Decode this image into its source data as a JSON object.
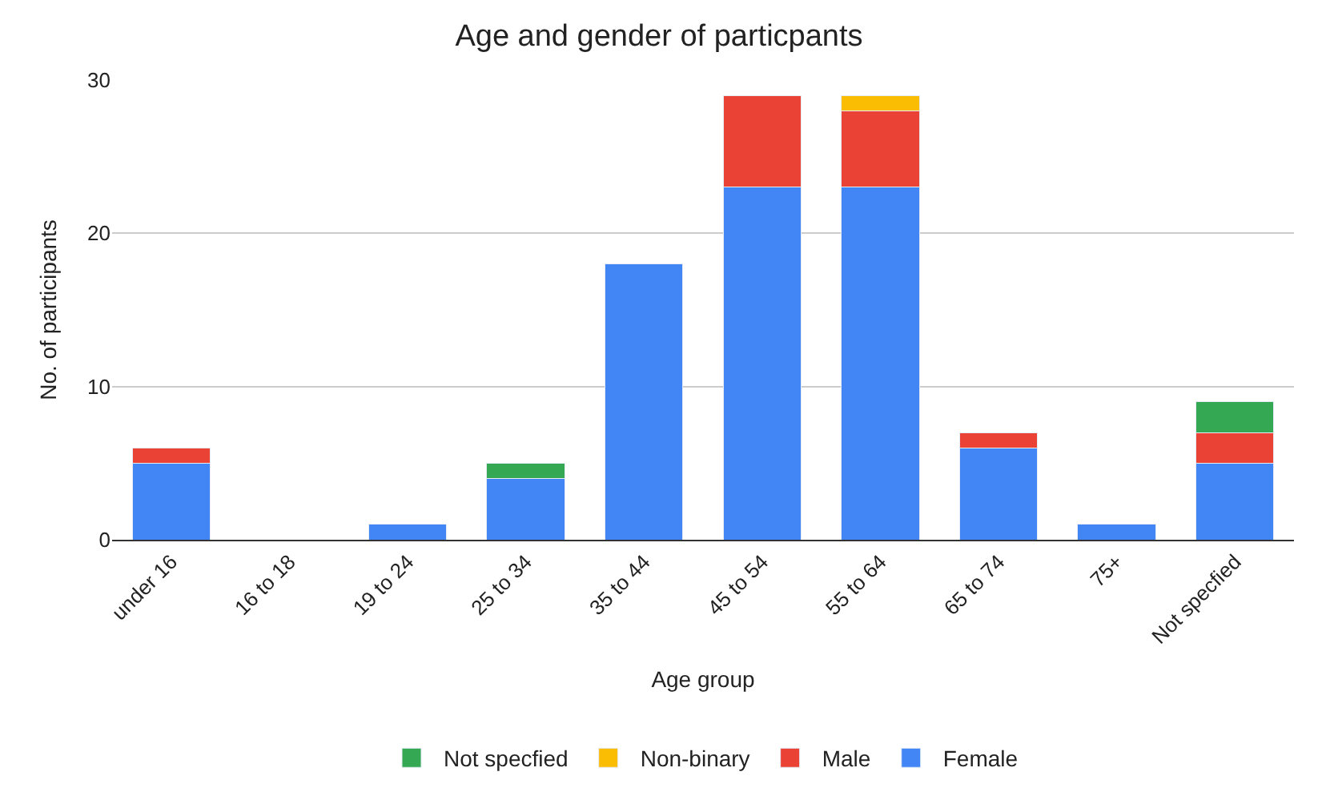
{
  "chart_data": {
    "type": "bar",
    "title": "Age and gender of particpants",
    "xlabel": "Age group",
    "ylabel": "No. of participants",
    "categories": [
      "under 16",
      "16 to 18",
      "19 to 24",
      "25 to 34",
      "35 to 44",
      "45 to 54",
      "55 to 64",
      "65 to 74",
      "75+",
      "Not specfied"
    ],
    "stacked": true,
    "ylim": [
      0,
      30
    ],
    "yticks": [
      0,
      10,
      20,
      30
    ],
    "grid": "y",
    "legend": "bottom",
    "series": [
      {
        "name": "Female",
        "color": "#4285f4",
        "values": [
          5,
          null,
          1,
          4,
          18,
          23,
          23,
          6,
          1,
          5
        ]
      },
      {
        "name": "Male",
        "color": "#ea4335",
        "values": [
          1,
          null,
          null,
          null,
          null,
          6,
          5,
          1,
          null,
          2
        ]
      },
      {
        "name": "Non-binary",
        "color": "#fbbc04",
        "values": [
          null,
          null,
          null,
          null,
          null,
          null,
          1,
          null,
          null,
          null
        ]
      },
      {
        "name": "Not specfied",
        "color": "#34a853",
        "values": [
          null,
          null,
          null,
          1,
          null,
          null,
          null,
          null,
          null,
          2
        ]
      }
    ]
  }
}
